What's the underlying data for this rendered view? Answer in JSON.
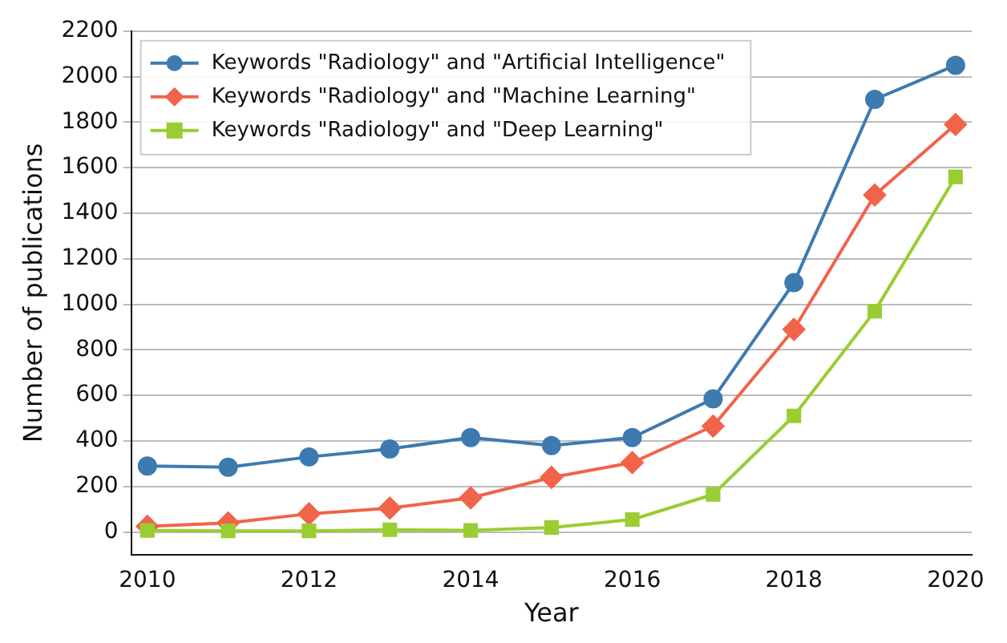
{
  "chart_data": {
    "type": "line",
    "xlabel": "Year",
    "ylabel": "Number of publications",
    "x": [
      2010,
      2011,
      2012,
      2013,
      2014,
      2015,
      2016,
      2017,
      2018,
      2019,
      2020
    ],
    "series": [
      {
        "name": "Keywords \"Radiology\" and \"Artificial Intelligence\"",
        "color": "#3d7ab0",
        "marker": "circle",
        "values": [
          290,
          285,
          330,
          365,
          415,
          380,
          415,
          585,
          1095,
          1900,
          2050
        ]
      },
      {
        "name": "Keywords \"Radiology\" and \"Machine Learning\"",
        "color": "#f0644a",
        "marker": "diamond",
        "values": [
          25,
          40,
          80,
          105,
          150,
          240,
          305,
          465,
          890,
          1480,
          1790
        ]
      },
      {
        "name": "Keywords \"Radiology\" and \"Deep Learning\"",
        "color": "#9acd32",
        "marker": "square",
        "values": [
          7,
          5,
          5,
          10,
          7,
          20,
          55,
          165,
          510,
          970,
          1560
        ]
      }
    ],
    "xlim": [
      2009.8,
      2020.2
    ],
    "xticks": [
      2010,
      2012,
      2014,
      2016,
      2018,
      2020
    ],
    "ylim": [
      -100,
      2200
    ],
    "yticks": [
      0,
      200,
      400,
      600,
      800,
      1000,
      1200,
      1400,
      1600,
      1800,
      2000,
      2200
    ],
    "grid": "y",
    "legend": "top left",
    "line_style": "solid"
  }
}
